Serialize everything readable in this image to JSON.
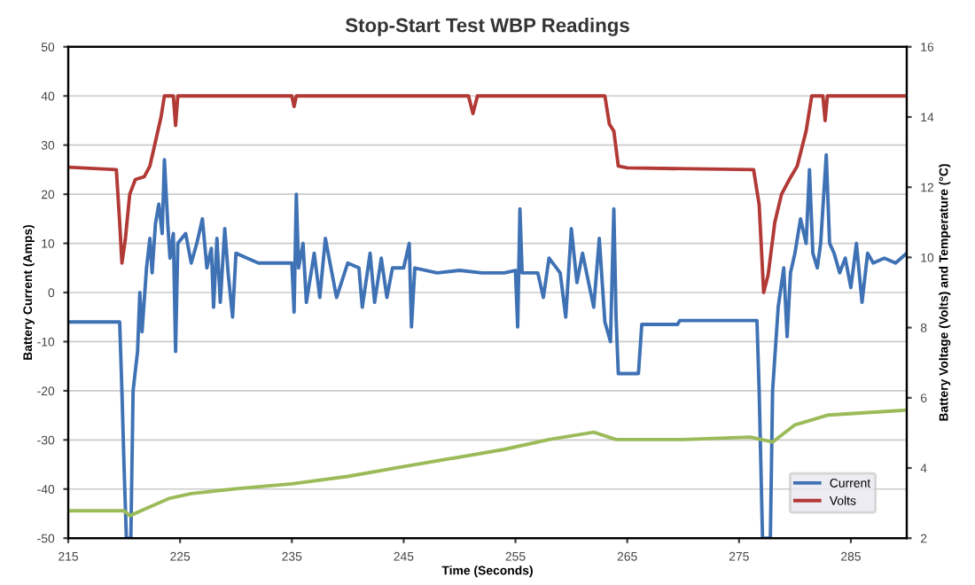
{
  "chart_data": {
    "type": "line",
    "title": "Stop-Start Test WBP Readings",
    "xlabel": "Time (Seconds)",
    "ylabel": "Battery Current (Amps)",
    "y2label": "Battery Voltage (Volts) and Temperature (°C)",
    "xlim": [
      215,
      290
    ],
    "xticks": [
      215,
      225,
      235,
      245,
      255,
      265,
      275,
      285
    ],
    "ylim": [
      -50,
      50
    ],
    "yticks": [
      -50,
      -40,
      -30,
      -20,
      -10,
      0,
      10,
      20,
      30,
      40,
      50
    ],
    "y2lim": [
      2,
      16
    ],
    "y2ticks": [
      2,
      4,
      6,
      8,
      10,
      12,
      14,
      16
    ],
    "grid": "y",
    "legend": "bottom right",
    "marker": "none",
    "line_style": "solid",
    "series": [
      {
        "name": "Current",
        "color": "#3f72b5",
        "x": [
          215,
          219.6,
          219.8,
          220,
          220.2,
          220.6,
          220.8,
          221.2,
          221.4,
          221.6,
          222,
          222.3,
          222.5,
          222.8,
          223.1,
          223.4,
          223.6,
          223.9,
          224.1,
          224.4,
          224.6,
          224.8,
          225.5,
          226,
          226.5,
          227,
          227.4,
          227.8,
          228,
          228.3,
          228.6,
          229,
          229.3,
          229.7,
          230,
          231,
          232,
          233,
          234,
          235,
          235.2,
          235.4,
          235.6,
          236,
          236.3,
          237,
          237.5,
          238,
          238.5,
          239,
          240,
          241,
          241.3,
          242,
          242.4,
          243,
          243.5,
          244,
          245,
          245.5,
          245.7,
          246,
          248,
          250,
          252,
          254,
          255,
          255.2,
          255.4,
          255.6,
          257,
          257.5,
          258,
          259,
          259.5,
          260,
          260.5,
          261,
          262,
          262.5,
          263,
          263.5,
          263.8,
          264,
          264.2,
          266,
          266.3,
          269.5,
          269.7,
          276.6,
          276.8,
          277.1,
          277.8,
          278,
          278.5,
          279,
          279.3,
          279.6,
          280,
          280.5,
          281,
          281.3,
          281.6,
          282,
          282.3,
          282.8,
          283.1,
          283.5,
          284,
          284.5,
          285,
          285.5,
          286,
          286.5,
          287,
          288,
          289,
          290
        ],
        "values": [
          -6,
          -6,
          -20,
          -36,
          -50,
          -50,
          -20,
          -12,
          0,
          -8,
          5,
          11,
          4,
          14,
          18,
          12,
          27,
          14,
          7,
          12,
          -12,
          10,
          12,
          6,
          10,
          15,
          5,
          9,
          -3,
          11,
          -2,
          13,
          4,
          -5,
          8,
          7,
          6,
          6,
          6,
          6,
          -4,
          20,
          5,
          10,
          -2,
          8,
          -1,
          11,
          5,
          -1,
          6,
          5,
          -3,
          8,
          -2,
          7,
          -1,
          5,
          5,
          10,
          -7,
          5,
          4,
          4.5,
          4,
          4,
          4.5,
          -7,
          17,
          4,
          4,
          -1,
          7,
          4,
          -5,
          13,
          2,
          8,
          -3,
          11,
          -6,
          -10,
          17,
          -5,
          -16.5,
          -16.5,
          -6.5,
          -6.5,
          -5.7,
          -5.7,
          -20,
          -50,
          -50,
          -20,
          -3,
          5,
          -9,
          4,
          8,
          15,
          10,
          25,
          8,
          5,
          10,
          28,
          10,
          8,
          4,
          7,
          1,
          10,
          -2,
          8,
          6,
          7,
          6,
          8
        ]
      },
      {
        "name": "Volts",
        "color": "#b23a36",
        "axis": "y2",
        "x": [
          215,
          219.3,
          219.6,
          219.8,
          220.1,
          220.5,
          221,
          221.8,
          222.3,
          222.8,
          223.3,
          223.6,
          224.4,
          224.6,
          224.8,
          235,
          235.2,
          235.4,
          250.8,
          251.2,
          251.6,
          263,
          263.4,
          263.8,
          264.2,
          265,
          276.3,
          276.8,
          277.2,
          277.6,
          278.2,
          278.8,
          279.5,
          280.2,
          281,
          281.5,
          282.5,
          282.7,
          282.9,
          290
        ],
        "values": [
          12.57,
          12.5,
          11.0,
          9.84,
          10.5,
          11.8,
          12.22,
          12.3,
          12.6,
          13.3,
          14.0,
          14.6,
          14.6,
          13.76,
          14.6,
          14.6,
          14.3,
          14.6,
          14.6,
          14.1,
          14.6,
          14.6,
          13.8,
          13.6,
          12.6,
          12.55,
          12.5,
          11.5,
          9.0,
          9.5,
          11.0,
          11.8,
          12.22,
          12.6,
          13.6,
          14.6,
          14.6,
          13.9,
          14.6,
          14.6
        ]
      },
      {
        "color": "#9bbb59",
        "axis": "y2",
        "x": [
          215,
          220,
          220.5,
          222,
          224,
          226,
          230,
          235,
          240,
          245,
          254,
          258,
          262,
          264,
          270,
          276,
          278,
          280,
          283,
          290
        ],
        "values": [
          2.78,
          2.78,
          2.64,
          2.85,
          3.13,
          3.27,
          3.41,
          3.55,
          3.76,
          4.04,
          4.53,
          4.81,
          5.02,
          4.81,
          4.81,
          4.88,
          4.74,
          5.23,
          5.51,
          5.65
        ]
      }
    ]
  }
}
